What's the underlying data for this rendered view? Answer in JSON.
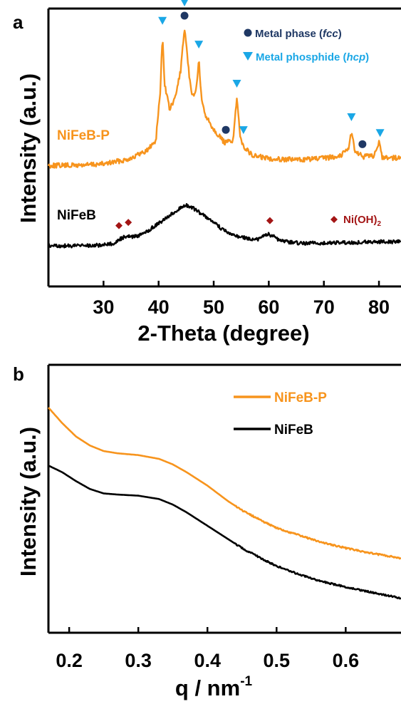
{
  "chart_data": [
    {
      "panel_label": "a",
      "type": "line",
      "xlabel": "2-Theta (degree)",
      "ylabel": "Intensity (a.u.)",
      "xlim": [
        20,
        84
      ],
      "xticks": [
        30,
        40,
        50,
        60,
        70,
        80
      ],
      "yticks_shown": false,
      "series": [
        {
          "name": "NiFeB-P",
          "color": "#f7941d",
          "x": [
            20,
            25,
            30,
            34,
            36,
            38,
            39.5,
            40.3,
            40.7,
            41.1,
            42,
            43,
            44,
            44.7,
            45.4,
            46,
            46.8,
            47.3,
            47.8,
            48.5,
            50,
            52,
            53.5,
            54.2,
            54.8,
            55.6,
            57,
            60,
            65,
            70,
            73,
            74.5,
            75,
            75.6,
            77,
            79,
            80,
            80.6,
            84
          ],
          "y": [
            0.02,
            0.02,
            0.03,
            0.06,
            0.09,
            0.13,
            0.2,
            0.55,
            0.95,
            0.6,
            0.42,
            0.5,
            0.7,
            1.0,
            0.72,
            0.52,
            0.55,
            0.78,
            0.48,
            0.38,
            0.28,
            0.18,
            0.2,
            0.5,
            0.22,
            0.15,
            0.09,
            0.07,
            0.06,
            0.07,
            0.09,
            0.15,
            0.26,
            0.13,
            0.08,
            0.09,
            0.18,
            0.08,
            0.07
          ]
        },
        {
          "name": "NiFeB",
          "color": "#000000",
          "x": [
            20,
            25,
            30,
            32,
            33,
            34,
            35,
            36,
            38,
            40,
            42,
            44,
            45,
            46,
            48,
            50,
            52,
            54,
            56,
            58,
            59,
            60,
            61,
            62,
            64,
            66,
            70,
            75,
            80,
            84
          ],
          "y": [
            0.0,
            0.0,
            0.01,
            0.04,
            0.1,
            0.14,
            0.13,
            0.14,
            0.22,
            0.33,
            0.45,
            0.56,
            0.6,
            0.57,
            0.46,
            0.34,
            0.22,
            0.15,
            0.11,
            0.1,
            0.14,
            0.17,
            0.13,
            0.08,
            0.05,
            0.04,
            0.04,
            0.05,
            0.06,
            0.06
          ]
        }
      ],
      "series_labels": [
        "NiFeB-P",
        "NiFeB"
      ],
      "legend": [
        {
          "marker": "circle",
          "color": "#1f3864",
          "text_prefix": "Metal phase (",
          "text_em": "fcc",
          "text_suffix": ")"
        },
        {
          "marker": "triangle-down",
          "color": "#1aa7e6",
          "text_prefix": "Metal phosphide (",
          "text_em": "hcp",
          "text_suffix": ")"
        },
        {
          "marker": "diamond",
          "color": "#a31515",
          "text_prefix": "Ni(OH)",
          "text_sub": "2"
        }
      ],
      "markers": {
        "circle": [
          44.7,
          52.2,
          77.0
        ],
        "triangle": [
          40.7,
          44.7,
          47.3,
          54.2,
          55.4,
          75.0,
          80.2
        ],
        "diamond": [
          32.8,
          34.5,
          60.2
        ]
      }
    },
    {
      "panel_label": "b",
      "type": "line",
      "xlabel": "q / nm",
      "xlabel_sup": "-1",
      "ylabel": "Intensity (a.u.)",
      "xlim": [
        0.17,
        0.68
      ],
      "xticks": [
        0.2,
        0.3,
        0.4,
        0.5,
        0.6
      ],
      "yticks_shown": false,
      "legend_position": "top-right",
      "series": [
        {
          "name": "NiFeB-P",
          "color": "#f7941d",
          "x": [
            0.17,
            0.19,
            0.21,
            0.23,
            0.25,
            0.27,
            0.3,
            0.33,
            0.35,
            0.37,
            0.4,
            0.43,
            0.45,
            0.48,
            0.5,
            0.53,
            0.56,
            0.6,
            0.64,
            0.68
          ],
          "y": [
            1.0,
            0.93,
            0.87,
            0.83,
            0.805,
            0.795,
            0.787,
            0.77,
            0.745,
            0.71,
            0.65,
            0.58,
            0.54,
            0.49,
            0.46,
            0.43,
            0.4,
            0.37,
            0.345,
            0.325
          ]
        },
        {
          "name": "NiFeB",
          "color": "#000000",
          "x": [
            0.17,
            0.19,
            0.21,
            0.23,
            0.25,
            0.27,
            0.3,
            0.33,
            0.35,
            0.37,
            0.4,
            0.43,
            0.45,
            0.48,
            0.5,
            0.53,
            0.56,
            0.6,
            0.64,
            0.68
          ],
          "y": [
            0.74,
            0.71,
            0.67,
            0.635,
            0.615,
            0.61,
            0.605,
            0.59,
            0.565,
            0.53,
            0.47,
            0.41,
            0.37,
            0.32,
            0.29,
            0.255,
            0.225,
            0.195,
            0.17,
            0.145
          ]
        }
      ]
    }
  ]
}
